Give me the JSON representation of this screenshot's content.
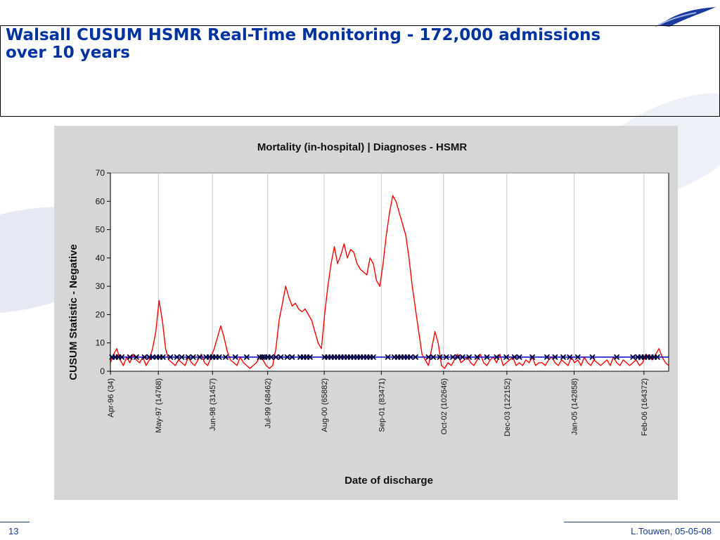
{
  "slide": {
    "title": "Walsall CUSUM HSMR Real-Time Monitoring - 172,000 admissions over 10 years",
    "page_number": "13",
    "footer": "L.Touwen, 05-05-08"
  },
  "colors": {
    "title": "#0033a0",
    "series": "#ff0000",
    "threshold": "#0000cc",
    "alarm": "#000033",
    "panel": "#d6d6d6",
    "grid": "#c8c8c8"
  },
  "chart_data": {
    "type": "line",
    "title": "Mortality (in-hospital) | Diagnoses - HSMR",
    "xlabel": "Date of discharge",
    "ylabel": "CUSUM Statistic - Negative",
    "ylim": [
      0,
      70
    ],
    "yticks": [
      0,
      10,
      20,
      30,
      40,
      50,
      60,
      70
    ],
    "xlim": [
      0,
      172000
    ],
    "xticks": [
      {
        "label": "Apr-96 (34)",
        "x": 34
      },
      {
        "label": "May-97 (14768)",
        "x": 14768
      },
      {
        "label": "Jun-98 (31457)",
        "x": 31457
      },
      {
        "label": "Jul-99 (48462)",
        "x": 48462
      },
      {
        "label": "Aug-00 (65882)",
        "x": 65882
      },
      {
        "label": "Sep-01 (83471)",
        "x": 83471
      },
      {
        "label": "Oct-02 (102646)",
        "x": 102646
      },
      {
        "label": "Dec-03 (122152)",
        "x": 122152
      },
      {
        "label": "Jan-05 (142858)",
        "x": 142858
      },
      {
        "label": "Feb-06 (164372)",
        "x": 164372
      }
    ],
    "grid": "vertical",
    "threshold": 5,
    "series": [
      {
        "x": [
          0,
          1000,
          2000,
          3000,
          4000,
          5000,
          6000,
          7000,
          8000,
          9000,
          10000,
          11000,
          12000,
          13000,
          14000,
          15000,
          16000,
          17000,
          18000,
          19000,
          20000,
          21000,
          22000,
          23000,
          24000,
          25000,
          26000,
          27000,
          28000,
          29000,
          30000,
          31000,
          32000,
          33000,
          34000,
          35000,
          36000,
          37000,
          38000,
          39000,
          40000,
          41000,
          42000,
          43000,
          44000,
          45000,
          46000,
          47000,
          48000,
          49000,
          50000,
          51000,
          52000,
          53000,
          54000,
          55000,
          56000,
          57000,
          58000,
          59000,
          60000,
          61000,
          62000,
          63000,
          64000,
          65000,
          66000,
          67000,
          68000,
          69000,
          70000,
          71000,
          72000,
          73000,
          74000,
          75000,
          76000,
          77000,
          78000,
          79000,
          80000,
          81000,
          82000,
          83000,
          84000,
          85000,
          86000,
          87000,
          88000,
          89000,
          90000,
          91000,
          92000,
          93000,
          94000,
          95000,
          96000,
          97000,
          98000,
          99000,
          100000,
          101000,
          102000,
          103000,
          104000,
          105000,
          106000,
          107000,
          108000,
          109000,
          110000,
          111000,
          112000,
          113000,
          114000,
          115000,
          116000,
          117000,
          118000,
          119000,
          120000,
          121000,
          122000,
          123000,
          124000,
          125000,
          126000,
          127000,
          128000,
          129000,
          130000,
          131000,
          132000,
          133000,
          134000,
          135000,
          136000,
          137000,
          138000,
          139000,
          140000,
          141000,
          142000,
          143000,
          144000,
          145000,
          146000,
          147000,
          148000,
          149000,
          150000,
          151000,
          152000,
          153000,
          154000,
          155000,
          156000,
          157000,
          158000,
          159000,
          160000,
          161000,
          162000,
          163000,
          164000,
          165000,
          166000,
          167000,
          168000,
          169000,
          170000,
          171000,
          172000
        ],
        "values": [
          3,
          6,
          8,
          4,
          2,
          5,
          3,
          6,
          4,
          3,
          5,
          2,
          4,
          8,
          14,
          25,
          18,
          8,
          4,
          3,
          2,
          4,
          3,
          2,
          5,
          3,
          2,
          4,
          6,
          3,
          2,
          5,
          8,
          12,
          16,
          12,
          7,
          4,
          3,
          2,
          5,
          3,
          2,
          1,
          2,
          3,
          5,
          4,
          2,
          1,
          2,
          8,
          18,
          24,
          30,
          26,
          23,
          24,
          22,
          21,
          22,
          20,
          18,
          14,
          10,
          8,
          20,
          30,
          38,
          44,
          38,
          41,
          45,
          40,
          43,
          42,
          38,
          36,
          35,
          34,
          40,
          38,
          32,
          30,
          38,
          48,
          56,
          62,
          60,
          56,
          52,
          48,
          40,
          30,
          22,
          14,
          6,
          4,
          2,
          8,
          14,
          10,
          2,
          1,
          3,
          2,
          4,
          6,
          3,
          4,
          5,
          3,
          2,
          4,
          6,
          3,
          2,
          4,
          5,
          3,
          6,
          2,
          3,
          4,
          5,
          2,
          3,
          2,
          4,
          3,
          5,
          2,
          3,
          3,
          2,
          4,
          5,
          3,
          2,
          4,
          3,
          2,
          5,
          3,
          4,
          2,
          5,
          3,
          2,
          4,
          3,
          2,
          3,
          4,
          2,
          5,
          3,
          2,
          4,
          3,
          2,
          3,
          4,
          2,
          3,
          6,
          5,
          4,
          6,
          8,
          5,
          3,
          2
        ]
      }
    ],
    "alarms_x": [
      500,
      1500,
      2500,
      3500,
      6000,
      8000,
      10500,
      12000,
      13000,
      14200,
      15200,
      16200,
      18500,
      20500,
      22000,
      24000,
      25500,
      27500,
      29500,
      30500,
      31500,
      32500,
      33500,
      35500,
      38500,
      42000,
      46000,
      46800,
      47500,
      48500,
      49500,
      51000,
      52500,
      54500,
      56000,
      58500,
      59500,
      60500,
      61500,
      66000,
      67000,
      68000,
      69000,
      70000,
      71000,
      72000,
      73000,
      74000,
      75000,
      76000,
      77000,
      78000,
      79000,
      80000,
      81000,
      85500,
      87500,
      88500,
      89500,
      90500,
      91500,
      92500,
      94000,
      98000,
      99500,
      101500,
      103500,
      105500,
      107000,
      108500,
      110500,
      113000,
      116000,
      119000,
      122000,
      124500,
      126000,
      130000,
      134500,
      137000,
      139500,
      141500,
      144000,
      148500,
      156000,
      161000,
      162500,
      163500,
      164500,
      165500,
      166500,
      167500,
      168500
    ]
  }
}
